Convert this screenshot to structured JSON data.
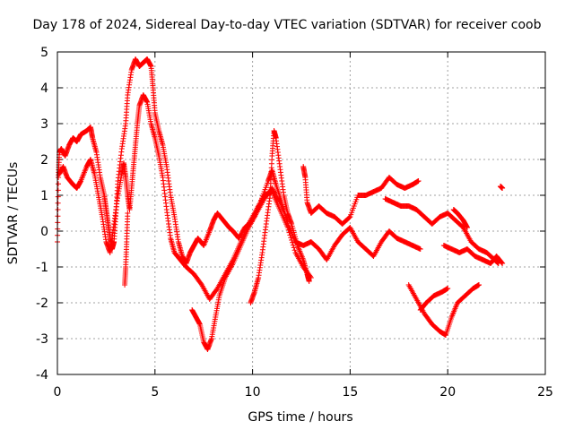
{
  "chart_data": {
    "type": "scatter",
    "title": "Day 178 of 2024, Sidereal Day-to-day VTEC variation (SDTVAR) for receiver coob",
    "xlabel": "GPS time / hours",
    "ylabel": "SDTVAR / TECUs",
    "xlim": [
      0,
      25
    ],
    "ylim": [
      -4,
      5
    ],
    "xticks": [
      "0",
      "5",
      "10",
      "15",
      "20",
      "25"
    ],
    "yticks": [
      "-4",
      "-3",
      "-2",
      "-1",
      "0",
      "1",
      "2",
      "3",
      "4",
      "5"
    ],
    "grid": true,
    "marker": "+",
    "color": "#ff0000",
    "series": [
      {
        "points": [
          [
            0.0,
            -0.3
          ],
          [
            0.05,
            1.5
          ],
          [
            0.1,
            2.2
          ],
          [
            0.2,
            2.3
          ],
          [
            0.4,
            2.1
          ],
          [
            0.6,
            2.4
          ],
          [
            0.8,
            2.6
          ],
          [
            1.0,
            2.5
          ],
          [
            1.2,
            2.7
          ],
          [
            1.5,
            2.8
          ],
          [
            1.7,
            2.9
          ],
          [
            1.8,
            2.6
          ],
          [
            2.0,
            2.2
          ],
          [
            2.2,
            1.5
          ],
          [
            2.4,
            1.0
          ],
          [
            2.5,
            0.6
          ],
          [
            2.6,
            0.2
          ],
          [
            2.7,
            -0.2
          ],
          [
            2.8,
            -0.5
          ],
          [
            2.9,
            -0.3
          ],
          [
            3.0,
            0.5
          ],
          [
            3.1,
            1.4
          ],
          [
            3.3,
            2.3
          ],
          [
            3.5,
            3.0
          ],
          [
            3.6,
            3.8
          ],
          [
            3.8,
            4.5
          ],
          [
            4.0,
            4.8
          ],
          [
            4.2,
            4.6
          ],
          [
            4.4,
            4.7
          ],
          [
            4.6,
            4.8
          ],
          [
            4.8,
            4.6
          ],
          [
            4.9,
            4.0
          ],
          [
            5.0,
            3.3
          ],
          [
            5.2,
            2.8
          ],
          [
            5.4,
            2.4
          ],
          [
            5.6,
            1.8
          ],
          [
            5.8,
            1.0
          ],
          [
            6.0,
            0.4
          ],
          [
            6.2,
            -0.3
          ],
          [
            6.4,
            -0.7
          ],
          [
            6.6,
            -0.9
          ],
          [
            6.8,
            -0.6
          ],
          [
            7.0,
            -0.4
          ],
          [
            7.2,
            -0.2
          ],
          [
            7.5,
            -0.4
          ],
          [
            7.8,
            0.0
          ],
          [
            8.0,
            0.3
          ],
          [
            8.2,
            0.5
          ],
          [
            8.5,
            0.3
          ],
          [
            8.8,
            0.1
          ],
          [
            9.0,
            0.0
          ],
          [
            9.3,
            -0.2
          ],
          [
            9.6,
            0.1
          ],
          [
            10.0,
            0.3
          ],
          [
            10.4,
            0.8
          ],
          [
            10.8,
            1.4
          ],
          [
            11.0,
            1.7
          ],
          [
            11.2,
            1.3
          ],
          [
            11.5,
            0.8
          ],
          [
            11.8,
            0.2
          ],
          [
            12.2,
            -0.3
          ],
          [
            12.6,
            -0.4
          ],
          [
            13.0,
            -0.3
          ],
          [
            13.4,
            -0.5
          ],
          [
            13.8,
            -0.8
          ],
          [
            14.2,
            -0.4
          ],
          [
            14.6,
            -0.1
          ],
          [
            15.0,
            0.1
          ],
          [
            15.4,
            -0.3
          ],
          [
            15.8,
            -0.5
          ],
          [
            16.2,
            -0.7
          ],
          [
            16.6,
            -0.3
          ],
          [
            17.0,
            0.0
          ],
          [
            17.4,
            -0.2
          ],
          [
            17.8,
            -0.3
          ],
          [
            18.2,
            -0.4
          ],
          [
            18.6,
            -0.5
          ]
        ]
      },
      {
        "points": [
          [
            0.1,
            1.6
          ],
          [
            0.3,
            1.8
          ],
          [
            0.5,
            1.5
          ],
          [
            0.8,
            1.3
          ],
          [
            1.0,
            1.2
          ],
          [
            1.2,
            1.4
          ],
          [
            1.5,
            1.8
          ],
          [
            1.7,
            2.0
          ],
          [
            1.9,
            1.6
          ],
          [
            2.1,
            1.0
          ],
          [
            2.3,
            0.4
          ],
          [
            2.5,
            -0.3
          ],
          [
            2.7,
            -0.6
          ],
          [
            2.9,
            0.2
          ],
          [
            3.1,
            1.0
          ],
          [
            3.3,
            1.6
          ],
          [
            3.4,
            1.9
          ],
          [
            3.5,
            1.5
          ],
          [
            3.6,
            1.0
          ],
          [
            3.7,
            0.6
          ],
          [
            3.8,
            1.2
          ],
          [
            3.9,
            1.8
          ],
          [
            4.0,
            2.4
          ],
          [
            4.1,
            3.0
          ],
          [
            4.2,
            3.5
          ],
          [
            4.4,
            3.8
          ],
          [
            4.6,
            3.6
          ],
          [
            4.8,
            3.0
          ],
          [
            5.0,
            2.6
          ],
          [
            5.2,
            2.1
          ],
          [
            5.4,
            1.5
          ],
          [
            5.6,
            0.6
          ],
          [
            5.8,
            -0.2
          ],
          [
            6.0,
            -0.6
          ],
          [
            6.3,
            -0.8
          ],
          [
            6.6,
            -1.0
          ],
          [
            7.0,
            -1.2
          ],
          [
            7.4,
            -1.5
          ],
          [
            7.8,
            -1.9
          ],
          [
            8.2,
            -1.6
          ],
          [
            8.6,
            -1.2
          ],
          [
            9.0,
            -0.8
          ],
          [
            9.4,
            -0.3
          ],
          [
            9.8,
            0.2
          ],
          [
            10.2,
            0.6
          ],
          [
            10.6,
            1.0
          ],
          [
            11.0,
            1.1
          ],
          [
            11.4,
            0.6
          ],
          [
            11.8,
            0.1
          ],
          [
            12.2,
            -0.6
          ],
          [
            12.6,
            -1.0
          ],
          [
            13.0,
            -1.3
          ]
        ]
      },
      {
        "points": [
          [
            3.45,
            -1.5
          ],
          [
            3.5,
            -1.0
          ],
          [
            3.55,
            -0.3
          ],
          [
            3.6,
            0.5
          ]
        ]
      },
      {
        "points": [
          [
            6.9,
            -2.2
          ],
          [
            7.1,
            -2.4
          ],
          [
            7.3,
            -2.6
          ],
          [
            7.5,
            -3.1
          ],
          [
            7.7,
            -3.3
          ],
          [
            7.9,
            -3.0
          ],
          [
            8.1,
            -2.4
          ],
          [
            8.3,
            -1.8
          ],
          [
            8.6,
            -1.3
          ],
          [
            9.0,
            -0.9
          ],
          [
            9.4,
            -0.4
          ],
          [
            9.8,
            0.1
          ],
          [
            10.2,
            0.5
          ],
          [
            10.6,
            0.9
          ],
          [
            11.0,
            1.2
          ],
          [
            11.4,
            0.8
          ],
          [
            11.8,
            0.3
          ]
        ]
      },
      {
        "points": [
          [
            9.9,
            -2.0
          ],
          [
            10.1,
            -1.7
          ],
          [
            10.3,
            -1.3
          ],
          [
            10.5,
            -0.6
          ],
          [
            10.7,
            0.2
          ],
          [
            10.9,
            1.0
          ],
          [
            11.0,
            2.1
          ],
          [
            11.1,
            2.8
          ],
          [
            11.2,
            2.6
          ],
          [
            11.4,
            1.8
          ],
          [
            11.6,
            1.0
          ],
          [
            11.8,
            0.5
          ],
          [
            12.0,
            0.2
          ],
          [
            12.3,
            -0.4
          ],
          [
            12.6,
            -0.8
          ],
          [
            12.8,
            -1.2
          ],
          [
            12.9,
            -1.4
          ]
        ]
      },
      {
        "points": [
          [
            12.6,
            1.8
          ],
          [
            12.7,
            1.5
          ],
          [
            12.8,
            0.8
          ],
          [
            13.0,
            0.5
          ],
          [
            13.4,
            0.7
          ],
          [
            13.8,
            0.5
          ],
          [
            14.2,
            0.4
          ],
          [
            14.6,
            0.2
          ],
          [
            15.0,
            0.4
          ],
          [
            15.4,
            1.0
          ],
          [
            15.8,
            1.0
          ],
          [
            16.2,
            1.1
          ],
          [
            16.6,
            1.2
          ],
          [
            17.0,
            1.5
          ],
          [
            17.4,
            1.3
          ],
          [
            17.8,
            1.2
          ],
          [
            18.2,
            1.3
          ],
          [
            18.5,
            1.4
          ]
        ]
      },
      {
        "points": [
          [
            16.8,
            0.9
          ],
          [
            17.2,
            0.8
          ],
          [
            17.6,
            0.7
          ],
          [
            18.0,
            0.7
          ],
          [
            18.4,
            0.6
          ],
          [
            18.8,
            0.4
          ],
          [
            19.2,
            0.2
          ],
          [
            19.6,
            0.4
          ],
          [
            20.0,
            0.5
          ],
          [
            20.4,
            0.3
          ],
          [
            20.8,
            0.1
          ],
          [
            21.2,
            -0.3
          ],
          [
            21.6,
            -0.5
          ],
          [
            22.0,
            -0.6
          ],
          [
            22.4,
            -0.8
          ],
          [
            22.6,
            -0.9
          ]
        ]
      },
      {
        "points": [
          [
            18.0,
            -1.5
          ],
          [
            18.4,
            -1.9
          ],
          [
            18.8,
            -2.3
          ],
          [
            19.2,
            -2.6
          ],
          [
            19.6,
            -2.8
          ],
          [
            19.9,
            -2.9
          ],
          [
            20.2,
            -2.4
          ],
          [
            20.5,
            -2.0
          ],
          [
            20.9,
            -1.8
          ],
          [
            21.3,
            -1.6
          ],
          [
            21.6,
            -1.5
          ]
        ]
      },
      {
        "points": [
          [
            18.6,
            -2.2
          ],
          [
            18.9,
            -2.0
          ],
          [
            19.3,
            -1.8
          ],
          [
            19.7,
            -1.7
          ],
          [
            20.0,
            -1.6
          ]
        ]
      },
      {
        "points": [
          [
            19.8,
            -0.4
          ],
          [
            20.2,
            -0.5
          ],
          [
            20.6,
            -0.6
          ],
          [
            21.0,
            -0.5
          ],
          [
            21.4,
            -0.7
          ],
          [
            21.8,
            -0.8
          ],
          [
            22.2,
            -0.9
          ],
          [
            22.5,
            -0.7
          ],
          [
            22.8,
            -0.9
          ]
        ]
      },
      {
        "points": [
          [
            20.3,
            0.6
          ],
          [
            20.5,
            0.5
          ],
          [
            20.8,
            0.3
          ],
          [
            21.0,
            0.1
          ]
        ]
      },
      {
        "points": [
          [
            22.7,
            1.25
          ],
          [
            22.8,
            1.2
          ]
        ]
      }
    ]
  }
}
